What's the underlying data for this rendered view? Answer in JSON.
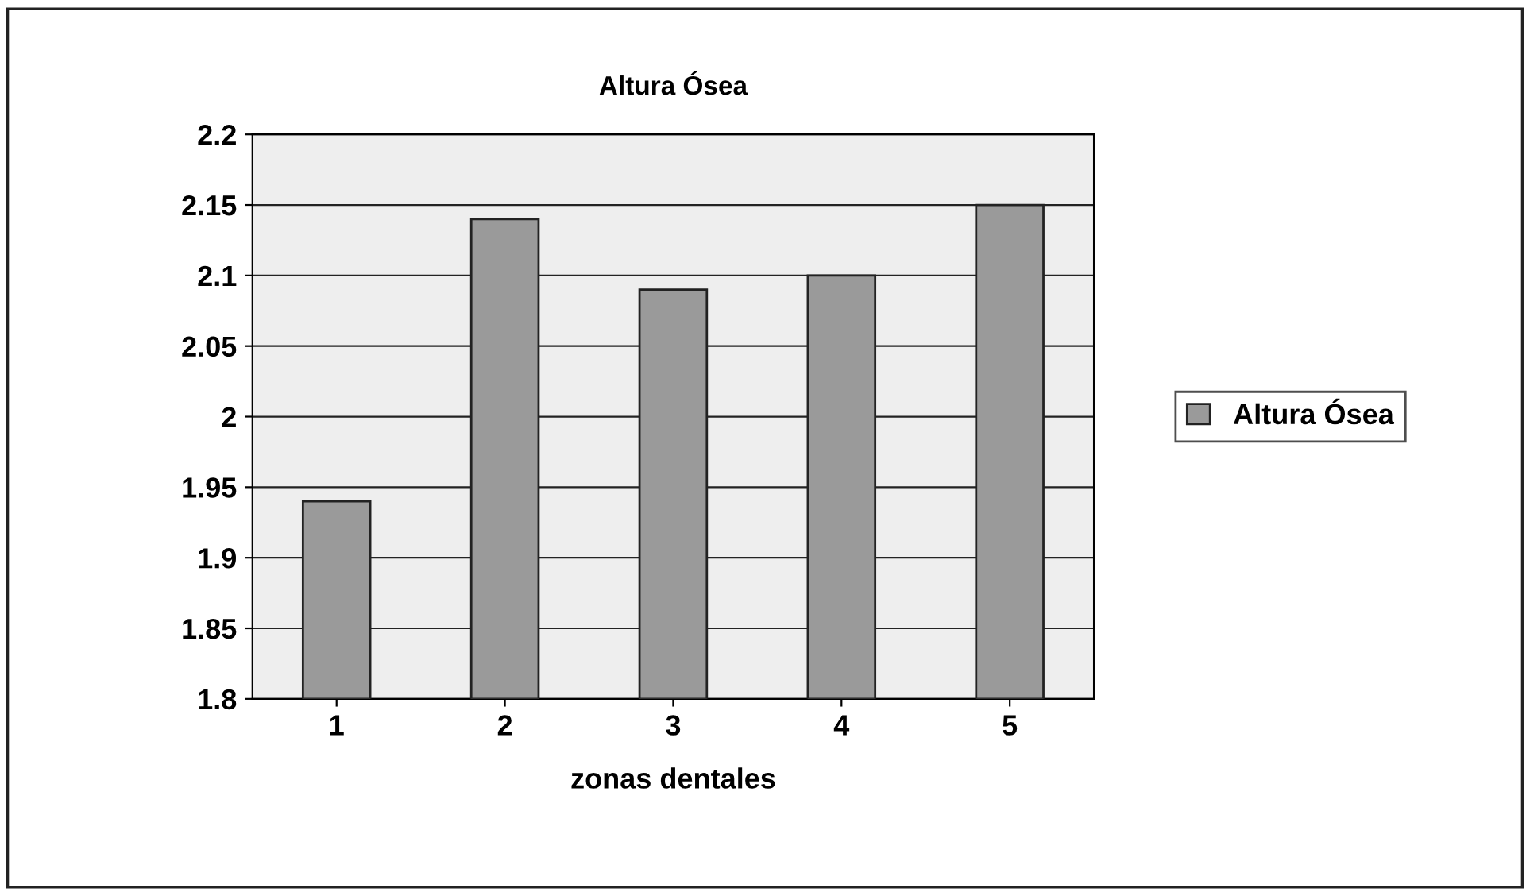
{
  "chart_data": {
    "type": "bar",
    "title": "Altura Ósea",
    "xlabel": "zonas dentales",
    "categories": [
      "1",
      "2",
      "3",
      "4",
      "5"
    ],
    "series": [
      {
        "name": "Altura Ósea",
        "color": "#9a9a9a",
        "values": [
          1.94,
          2.14,
          2.09,
          2.1,
          2.15
        ]
      }
    ],
    "ylim": [
      1.8,
      2.2
    ],
    "yticks": [
      1.8,
      1.85,
      1.9,
      1.95,
      2,
      2.05,
      2.1,
      2.15,
      2.2
    ],
    "grid": "y",
    "legend": "right"
  }
}
